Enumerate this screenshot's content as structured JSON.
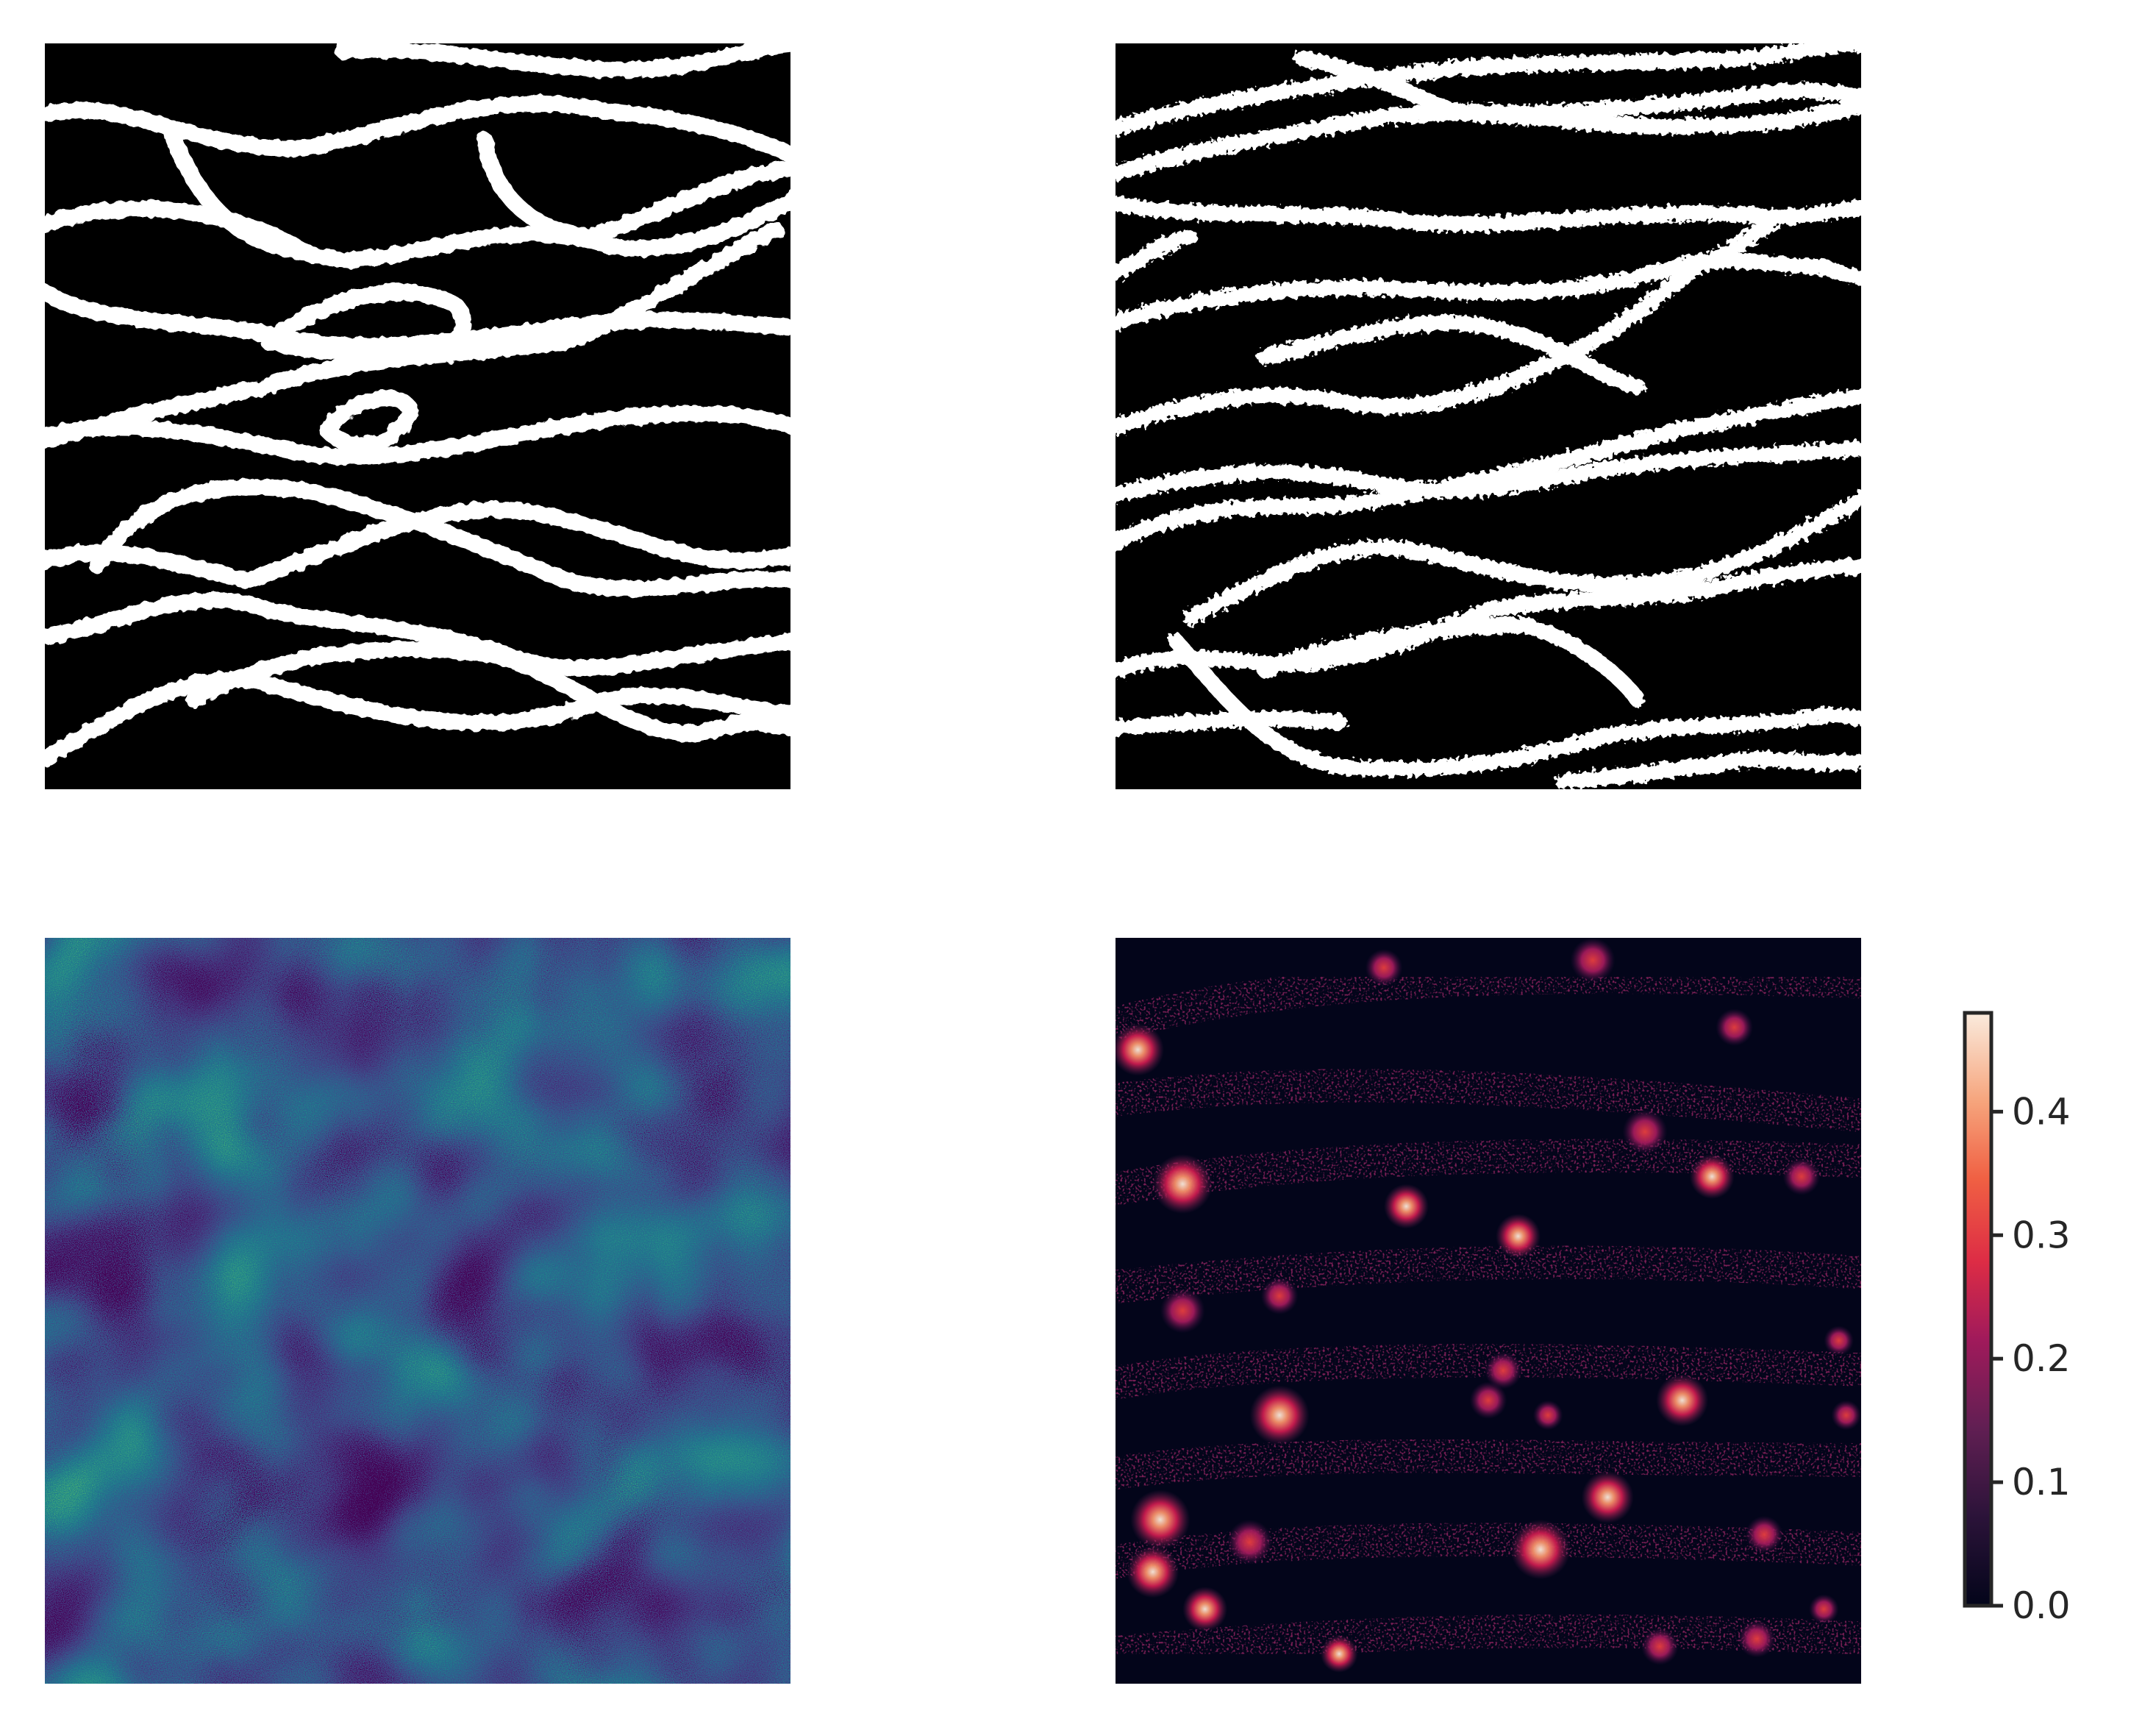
{
  "chart_data": [
    {
      "type": "heatmap",
      "panel": "top-left",
      "colormap": "binary (black background, white channels)",
      "colors": {
        "background": "#000000",
        "foreground": "#ffffff"
      },
      "axes": "off",
      "grid": false
    },
    {
      "type": "heatmap",
      "panel": "top-right",
      "colormap": "binary (black background, white channels, noisy)",
      "colors": {
        "background": "#000000",
        "foreground": "#ffffff"
      },
      "axes": "off",
      "grid": false
    },
    {
      "type": "heatmap",
      "panel": "bottom-left",
      "colormap": "viridis",
      "colors": {
        "low": "#440154",
        "mid": "#21918c",
        "high": "#bddf26"
      },
      "axes": "off",
      "grid": false
    },
    {
      "type": "heatmap",
      "panel": "bottom-right",
      "colormap": "rocket",
      "colors": {
        "low": "#03051a",
        "mid": "#cb1b4f",
        "high": "#faebdd"
      },
      "axes": "off",
      "grid": false,
      "colorbar": {
        "placement": "right",
        "vmin": 0.0,
        "vmax": 0.48,
        "ticks": [
          0.0,
          0.1,
          0.2,
          0.3,
          0.4
        ],
        "tick_labels": [
          "0.0",
          "0.1",
          "0.2",
          "0.3",
          "0.4"
        ]
      }
    }
  ]
}
